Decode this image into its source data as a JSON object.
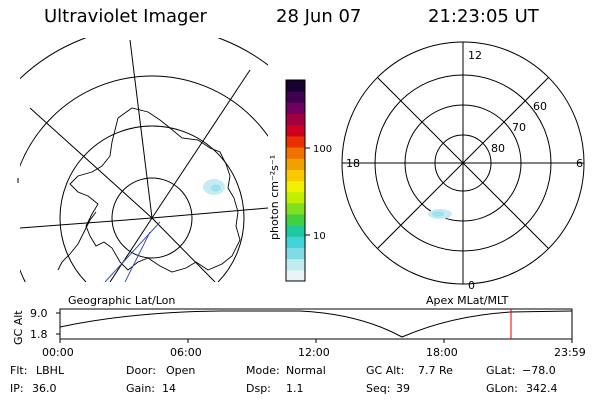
{
  "header": {
    "instrument": "Ultraviolet Imager",
    "date": "28 Jun 07",
    "time": "21:23:05 UT"
  },
  "colorbar": {
    "unit_label": "photon cm⁻²s⁻¹",
    "tick_100": "100",
    "tick_10": "10",
    "colors": [
      "#e8f4f8",
      "#c0ecf0",
      "#80dce4",
      "#40d4d8",
      "#20c8a0",
      "#40d040",
      "#80e020",
      "#c0f000",
      "#f0f000",
      "#f8c800",
      "#f0a000",
      "#f07000",
      "#e83000",
      "#d00020",
      "#a00040",
      "#700060",
      "#400050",
      "#180030"
    ]
  },
  "left_map": {
    "projection_label": "Geographic Lat/Lon"
  },
  "right_map": {
    "projection_label": "Apex MLat/MLT",
    "mlt_labels": {
      "top": "12",
      "left": "18",
      "right": "6",
      "bottom": "0"
    },
    "lat_labels": [
      "60",
      "70",
      "80"
    ]
  },
  "altitude_plot": {
    "axis_label": "GC Alt",
    "y_ticks": [
      "9.0",
      "1.8"
    ],
    "x_ticks": [
      "00:00",
      "06:00",
      "12:00",
      "18:00",
      "23:59"
    ],
    "current_time_marker_color": "#e00000"
  },
  "info": {
    "flt_label": "Flt:",
    "flt_value": "LBHL",
    "door_label": "Door:",
    "door_value": "Open",
    "mode_label": "Mode:",
    "mode_value": "Normal",
    "gcalt_label": "GC Alt:",
    "gcalt_value": "7.7 Re",
    "glat_label": "GLat:",
    "glat_value": "−78.0",
    "ip_label": "IP:",
    "ip_value": "36.0",
    "gain_label": "Gain:",
    "gain_value": "14",
    "dsp_label": "Dsp:",
    "dsp_value": "1.1",
    "seq_label": "Seq:",
    "seq_value": "39",
    "glon_label": "GLon:",
    "glon_value": "342.4"
  }
}
